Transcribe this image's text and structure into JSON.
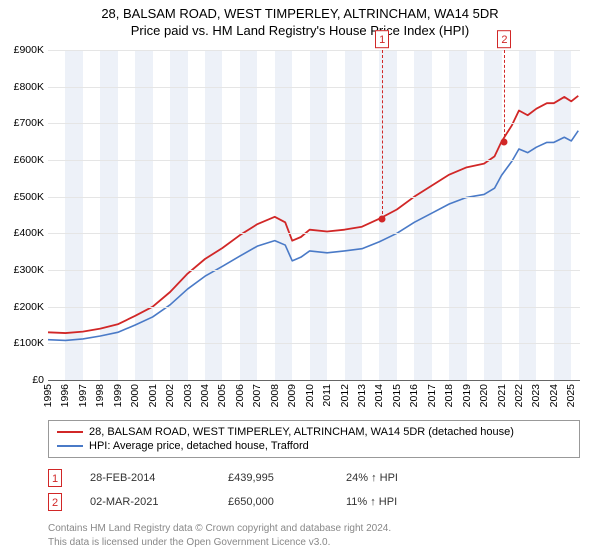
{
  "title_line1": "28, BALSAM ROAD, WEST TIMPERLEY, ALTRINCHAM, WA14 5DR",
  "title_line2": "Price paid vs. HM Land Registry's House Price Index (HPI)",
  "chart": {
    "type": "line",
    "background_color": "#ffffff",
    "grid_color": "#e5e5e5",
    "axis_color": "#666666",
    "ylim": [
      0,
      900
    ],
    "ytick_step": 100,
    "ytick_prefix": "£",
    "ytick_suffix": "K",
    "xlim": [
      1995,
      2025.5
    ],
    "xticks": [
      1995,
      1996,
      1997,
      1998,
      1999,
      2000,
      2001,
      2002,
      2003,
      2004,
      2005,
      2006,
      2007,
      2008,
      2009,
      2010,
      2011,
      2012,
      2013,
      2014,
      2015,
      2016,
      2017,
      2018,
      2019,
      2020,
      2021,
      2022,
      2023,
      2024,
      2025
    ],
    "alt_band_color": "#edf1f8",
    "series": [
      {
        "id": "price",
        "color": "#d12727",
        "width": 1.8,
        "label": "28, BALSAM ROAD, WEST TIMPERLEY, ALTRINCHAM, WA14 5DR (detached house)",
        "data": [
          [
            1995,
            130
          ],
          [
            1996,
            128
          ],
          [
            1997,
            132
          ],
          [
            1998,
            140
          ],
          [
            1999,
            152
          ],
          [
            2000,
            175
          ],
          [
            2001,
            200
          ],
          [
            2002,
            240
          ],
          [
            2003,
            290
          ],
          [
            2004,
            330
          ],
          [
            2005,
            360
          ],
          [
            2006,
            395
          ],
          [
            2007,
            425
          ],
          [
            2008,
            445
          ],
          [
            2008.6,
            430
          ],
          [
            2009,
            380
          ],
          [
            2009.5,
            390
          ],
          [
            2010,
            410
          ],
          [
            2011,
            405
          ],
          [
            2012,
            410
          ],
          [
            2013,
            418
          ],
          [
            2014,
            440
          ],
          [
            2015,
            465
          ],
          [
            2016,
            500
          ],
          [
            2017,
            530
          ],
          [
            2018,
            560
          ],
          [
            2019,
            580
          ],
          [
            2020,
            590
          ],
          [
            2020.6,
            610
          ],
          [
            2021,
            650
          ],
          [
            2021.6,
            695
          ],
          [
            2022,
            735
          ],
          [
            2022.5,
            722
          ],
          [
            2023,
            740
          ],
          [
            2023.6,
            755
          ],
          [
            2024,
            755
          ],
          [
            2024.6,
            772
          ],
          [
            2025,
            760
          ],
          [
            2025.4,
            775
          ]
        ]
      },
      {
        "id": "hpi",
        "color": "#4a7ac7",
        "width": 1.6,
        "label": "HPI: Average price, detached house, Trafford",
        "data": [
          [
            1995,
            110
          ],
          [
            1996,
            108
          ],
          [
            1997,
            112
          ],
          [
            1998,
            120
          ],
          [
            1999,
            130
          ],
          [
            2000,
            150
          ],
          [
            2001,
            172
          ],
          [
            2002,
            205
          ],
          [
            2003,
            248
          ],
          [
            2004,
            283
          ],
          [
            2005,
            310
          ],
          [
            2006,
            338
          ],
          [
            2007,
            365
          ],
          [
            2008,
            380
          ],
          [
            2008.6,
            368
          ],
          [
            2009,
            325
          ],
          [
            2009.5,
            335
          ],
          [
            2010,
            352
          ],
          [
            2011,
            347
          ],
          [
            2012,
            352
          ],
          [
            2013,
            358
          ],
          [
            2014,
            377
          ],
          [
            2015,
            400
          ],
          [
            2016,
            430
          ],
          [
            2017,
            455
          ],
          [
            2018,
            480
          ],
          [
            2019,
            498
          ],
          [
            2020,
            506
          ],
          [
            2020.6,
            523
          ],
          [
            2021,
            558
          ],
          [
            2021.6,
            597
          ],
          [
            2022,
            630
          ],
          [
            2022.5,
            620
          ],
          [
            2023,
            635
          ],
          [
            2023.6,
            648
          ],
          [
            2024,
            648
          ],
          [
            2024.6,
            662
          ],
          [
            2025,
            652
          ],
          [
            2025.4,
            680
          ]
        ]
      }
    ],
    "markers": [
      {
        "n": "1",
        "x": 2014.16,
        "y": 440,
        "color": "#d12727"
      },
      {
        "n": "2",
        "x": 2021.17,
        "y": 650,
        "color": "#d12727"
      }
    ]
  },
  "legend": [
    {
      "color": "#d12727",
      "label": "28, BALSAM ROAD, WEST TIMPERLEY, ALTRINCHAM, WA14 5DR (detached house)"
    },
    {
      "color": "#4a7ac7",
      "label": "HPI: Average price, detached house, Trafford"
    }
  ],
  "sales": [
    {
      "n": "1",
      "date": "28-FEB-2014",
      "price": "£439,995",
      "pct": "24% ↑ HPI"
    },
    {
      "n": "2",
      "date": "02-MAR-2021",
      "price": "£650,000",
      "pct": "11% ↑ HPI"
    }
  ],
  "footer_line1": "Contains HM Land Registry data © Crown copyright and database right 2024.",
  "footer_line2": "This data is licensed under the Open Government Licence v3.0."
}
